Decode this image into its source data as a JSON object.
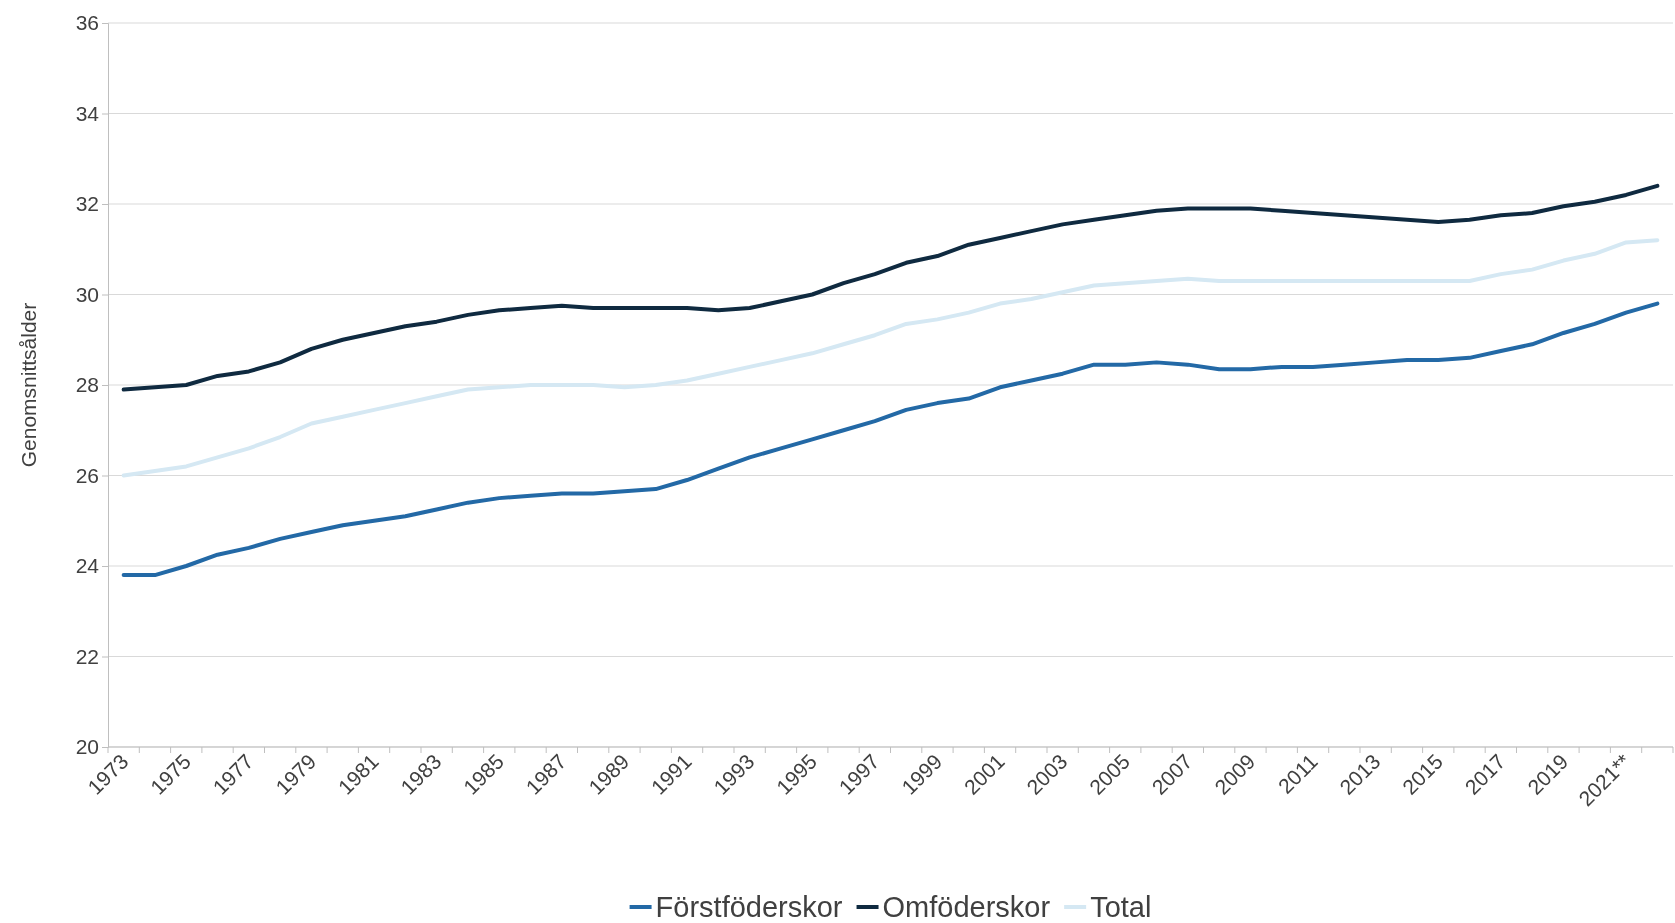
{
  "chart_data": {
    "type": "line",
    "ylabel": "Genomsnittsålder",
    "categories": [
      "1973",
      null,
      "1975",
      null,
      "1977",
      null,
      "1979",
      null,
      "1981",
      null,
      "1983",
      null,
      "1985",
      null,
      "1987",
      null,
      "1989",
      null,
      "1991",
      null,
      "1993",
      null,
      "1995",
      null,
      "1997",
      null,
      "1999",
      null,
      "2001",
      null,
      "2003",
      null,
      "2005",
      null,
      "2007",
      null,
      "2009",
      null,
      "2011",
      null,
      "2013",
      null,
      "2015",
      null,
      "2017",
      null,
      "2019",
      null,
      "2021**",
      null
    ],
    "series": [
      {
        "name": "Förstföderskor",
        "color": "#2369a6",
        "values": [
          23.8,
          23.8,
          24.0,
          24.25,
          24.4,
          24.6,
          24.75,
          24.9,
          25.0,
          25.1,
          25.25,
          25.4,
          25.5,
          25.55,
          25.6,
          25.6,
          25.65,
          25.7,
          25.9,
          26.15,
          26.4,
          26.6,
          26.8,
          27.0,
          27.2,
          27.45,
          27.6,
          27.7,
          27.95,
          28.1,
          28.25,
          28.45,
          28.45,
          28.5,
          28.45,
          28.35,
          28.35,
          28.4,
          28.4,
          28.45,
          28.5,
          28.55,
          28.55,
          28.6,
          28.75,
          28.9,
          29.15,
          29.35,
          29.6,
          29.8
        ]
      },
      {
        "name": "Omföderskor",
        "color": "#0f2a40",
        "values": [
          27.9,
          27.95,
          28.0,
          28.2,
          28.3,
          28.5,
          28.8,
          29.0,
          29.15,
          29.3,
          29.4,
          29.55,
          29.65,
          29.7,
          29.75,
          29.7,
          29.7,
          29.7,
          29.7,
          29.65,
          29.7,
          29.85,
          30.0,
          30.25,
          30.45,
          30.7,
          30.85,
          31.1,
          31.25,
          31.4,
          31.55,
          31.65,
          31.75,
          31.85,
          31.9,
          31.9,
          31.9,
          31.85,
          31.8,
          31.75,
          31.7,
          31.65,
          31.6,
          31.65,
          31.75,
          31.8,
          31.95,
          32.05,
          32.2,
          32.4
        ]
      },
      {
        "name": "Total",
        "color": "#d5e8f3",
        "values": [
          26.0,
          26.1,
          26.2,
          26.4,
          26.6,
          26.85,
          27.15,
          27.3,
          27.45,
          27.6,
          27.75,
          27.9,
          27.95,
          28.0,
          28.0,
          28.0,
          27.95,
          28.0,
          28.1,
          28.25,
          28.4,
          28.55,
          28.7,
          28.9,
          29.1,
          29.35,
          29.45,
          29.6,
          29.8,
          29.9,
          30.05,
          30.2,
          30.25,
          30.3,
          30.35,
          30.3,
          30.3,
          30.3,
          30.3,
          30.3,
          30.3,
          30.3,
          30.3,
          30.3,
          30.45,
          30.55,
          30.75,
          30.9,
          31.15,
          31.2
        ]
      }
    ],
    "ylim": [
      20,
      36
    ],
    "yticks": [
      20,
      22,
      24,
      26,
      28,
      30,
      32,
      34,
      36
    ],
    "grid": "y",
    "legend": "bottom",
    "marker": "none",
    "line_style": "solid"
  }
}
